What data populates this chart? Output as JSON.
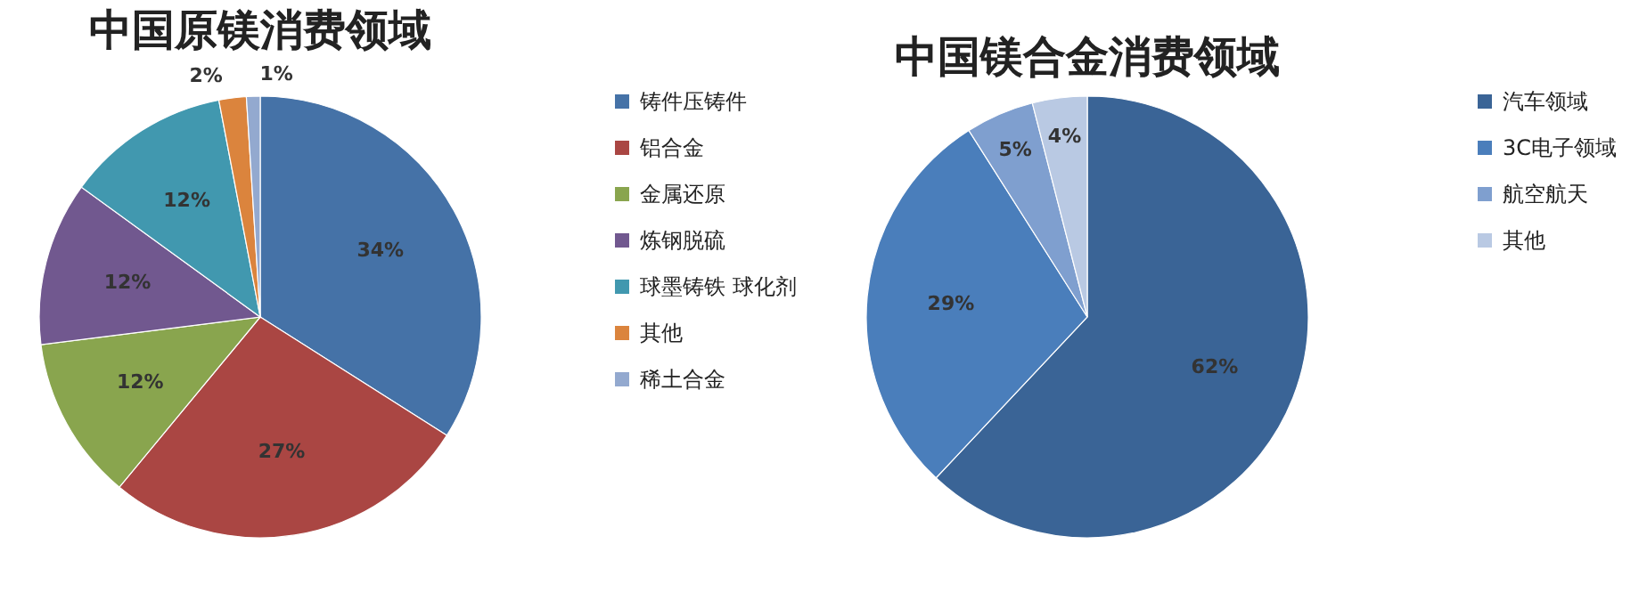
{
  "chart_data": [
    {
      "type": "pie",
      "title": "中国原镁消费领域",
      "categories": [
        "铸件压铸件",
        "铝合金",
        "金属还原",
        "炼钢脱硫",
        "球墨铸铁 球化剂",
        "其他",
        "稀土合金"
      ],
      "values": [
        34,
        27,
        12,
        12,
        12,
        2,
        1
      ],
      "value_labels": [
        "34%",
        "27%",
        "12%",
        "12%",
        "12%",
        "2%",
        "1%"
      ],
      "colors": [
        "#4572a7",
        "#aa4643",
        "#89a54e",
        "#71588f",
        "#4198af",
        "#db843d",
        "#93a9cf"
      ],
      "legend": "right"
    },
    {
      "type": "pie",
      "title": "中国镁合金消费领域",
      "categories": [
        "汽车领域",
        "3C电子领域",
        "航空航天",
        "其他"
      ],
      "values": [
        62,
        29,
        5,
        4
      ],
      "value_labels": [
        "62%",
        "29%",
        "5%",
        "4%"
      ],
      "colors": [
        "#3a6496",
        "#4a7ebb",
        "#7f9fcf",
        "#b9c9e3"
      ],
      "legend": "right"
    }
  ]
}
